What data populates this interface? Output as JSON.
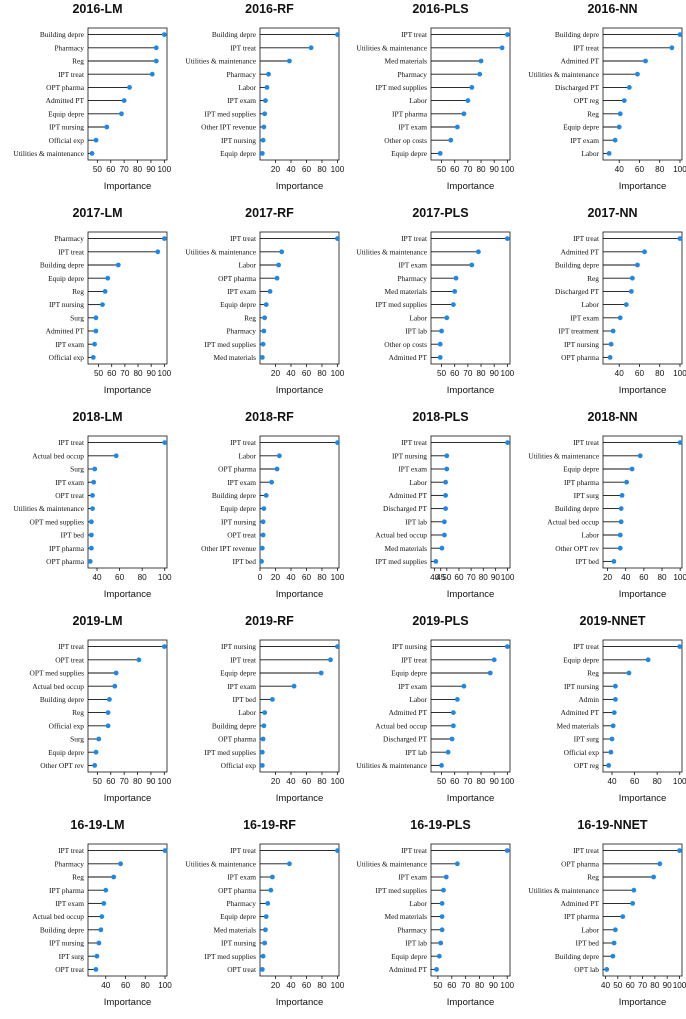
{
  "chart_data": [
    {
      "type": "lollipop",
      "title": "2016-LM",
      "xlabel": "Importance",
      "xlim": [
        43,
        102
      ],
      "ticks": [
        50,
        60,
        70,
        80,
        90,
        100
      ],
      "categories": [
        "Building depre",
        "Pharmacy",
        "Reg",
        "IPT treat",
        "OPT pharma",
        "Admitted PT",
        "Equip depre",
        "IPT nursing",
        "Official exp",
        "Utilities & maintenance"
      ],
      "values": [
        100,
        94,
        94,
        91,
        74,
        70,
        68,
        57,
        49,
        46
      ]
    },
    {
      "type": "lollipop",
      "title": "2016-RF",
      "xlabel": "Importance",
      "xlim": [
        0,
        102
      ],
      "ticks": [
        20,
        40,
        60,
        80,
        100
      ],
      "categories": [
        "Building depre",
        "IPT treat",
        "Utilities & maintenance",
        "Pharmacy",
        "Labor",
        "IPT exam",
        "IPT med supplies",
        "Other IPT revenue",
        "IPT nursing",
        "Equip depre"
      ],
      "values": [
        100,
        66,
        38,
        11,
        9,
        7,
        6,
        5,
        4,
        3
      ]
    },
    {
      "type": "lollipop",
      "title": "2016-PLS",
      "xlabel": "Importance",
      "xlim": [
        42,
        102
      ],
      "ticks": [
        50,
        60,
        70,
        80,
        90,
        100
      ],
      "categories": [
        "IPT treat",
        "Utilities & maintenance",
        "Med materials",
        "Pharmacy",
        "IPT med supplies",
        "Labor",
        "IPT pharma",
        "IPT exam",
        "Other op costs",
        "Equip depre"
      ],
      "values": [
        100,
        96,
        80,
        79,
        73,
        70,
        67,
        62,
        57,
        49
      ]
    },
    {
      "type": "lollipop",
      "title": "2016-NN",
      "xlabel": "Importance",
      "xlim": [
        24,
        102
      ],
      "ticks": [
        40,
        60,
        80,
        100
      ],
      "categories": [
        "Building depre",
        "IPT treat",
        "Admitted PT",
        "Utilities & maintenance",
        "Discharged PT",
        "OPT reg",
        "Reg",
        "Equip depre",
        "IPT exam",
        "Labor"
      ],
      "values": [
        100,
        92,
        66,
        58,
        50,
        45,
        41,
        40,
        36,
        30
      ]
    },
    {
      "type": "lollipop",
      "title": "2017-LM",
      "xlabel": "Importance",
      "xlim": [
        42,
        102
      ],
      "ticks": [
        50,
        60,
        70,
        80,
        90,
        100
      ],
      "categories": [
        "Pharmacy",
        "IPT treat",
        "Building depre",
        "Equip depre",
        "Reg",
        "IPT nursing",
        "Surg",
        "Admitted PT",
        "IPT exam",
        "Official exp"
      ],
      "values": [
        100,
        95,
        65,
        57,
        55,
        53,
        48,
        48,
        47,
        46
      ]
    },
    {
      "type": "lollipop",
      "title": "2017-RF",
      "xlabel": "Importance",
      "xlim": [
        0,
        102
      ],
      "ticks": [
        20,
        40,
        60,
        80,
        100
      ],
      "categories": [
        "IPT treat",
        "Utilities & maintenance",
        "Labor",
        "OPT pharma",
        "IPT exam",
        "Equip depre",
        "Reg",
        "Pharmacy",
        "IPT med supplies",
        "Med materials"
      ],
      "values": [
        100,
        28,
        24,
        22,
        13,
        8,
        6,
        5,
        4,
        3
      ]
    },
    {
      "type": "lollipop",
      "title": "2017-PLS",
      "xlabel": "Importance",
      "xlim": [
        42,
        102
      ],
      "ticks": [
        50,
        60,
        70,
        80,
        90,
        100
      ],
      "categories": [
        "IPT treat",
        "Utilities & maintenance",
        "IPT exam",
        "Pharmacy",
        "Med materials",
        "IPT med supplies",
        "Labor",
        "IPT lab",
        "Other op costs",
        "Admitted PT"
      ],
      "values": [
        100,
        78,
        73,
        61,
        60,
        59,
        54,
        50,
        49,
        49
      ]
    },
    {
      "type": "lollipop",
      "title": "2017-NN",
      "xlabel": "Importance",
      "xlim": [
        24,
        102
      ],
      "ticks": [
        40,
        60,
        80,
        100
      ],
      "categories": [
        "IPT treat",
        "Admitted PT",
        "Building depre",
        "Reg",
        "Discharged PT",
        "Labor",
        "IPT exam",
        "IPT treatment",
        "IPT nursing",
        "OPT pharma"
      ],
      "values": [
        100,
        65,
        58,
        53,
        52,
        47,
        41,
        34,
        32,
        31
      ]
    },
    {
      "type": "lollipop",
      "title": "2018-LM",
      "xlabel": "Importance",
      "xlim": [
        32,
        102
      ],
      "ticks": [
        40,
        60,
        80,
        100
      ],
      "categories": [
        "IPT treat",
        "Actual bed occup",
        "Surg",
        "IPT exam",
        "OPT treat",
        "Utilities & maintenance",
        "OPT med supplies",
        "IPT bed",
        "IPT pharma",
        "OPT pharma"
      ],
      "values": [
        100,
        57,
        38,
        37,
        36,
        36,
        35,
        35,
        35,
        34
      ]
    },
    {
      "type": "lollipop",
      "title": "2018-RF",
      "xlabel": "Importance",
      "xlim": [
        0,
        102
      ],
      "ticks": [
        0,
        20,
        40,
        60,
        80,
        100
      ],
      "categories": [
        "IPT treat",
        "Labor",
        "OPT pharma",
        "IPT exam",
        "Building depre",
        "Equip depre",
        "IPT nursing",
        "OPT treat",
        "Other IPT revenue",
        "IPT bed"
      ],
      "values": [
        100,
        25,
        22,
        15,
        8,
        5,
        4,
        4,
        3,
        2
      ]
    },
    {
      "type": "lollipop",
      "title": "2018-PLS",
      "xlabel": "Importance",
      "xlim": [
        37,
        102
      ],
      "ticks": [
        40,
        45,
        50,
        60,
        70,
        80,
        90,
        100
      ],
      "categories": [
        "IPT treat",
        "IPT nursing",
        "IPT exam",
        "Labor",
        "Admitted PT",
        "Discharged PT",
        "IPT lab",
        "Actual bed occup",
        "Med materials",
        "IPT med supplies"
      ],
      "values": [
        100,
        50,
        50,
        49,
        49,
        49,
        48,
        48,
        46,
        41
      ]
    },
    {
      "type": "lollipop",
      "title": "2018-NN",
      "xlabel": "Importance",
      "xlim": [
        15,
        102
      ],
      "ticks": [
        20,
        40,
        60,
        80,
        100
      ],
      "categories": [
        "IPT treat",
        "Utilities & maintenance",
        "Equip depre",
        "IPT pharma",
        "IPT surg",
        "Building depre",
        "Actual bed occup",
        "Labor",
        "Other OPT rev",
        "IPT bed"
      ],
      "values": [
        100,
        56,
        47,
        41,
        36,
        35,
        35,
        34,
        34,
        27
      ]
    },
    {
      "type": "lollipop",
      "title": "2019-LM",
      "xlabel": "Importance",
      "xlim": [
        43,
        102
      ],
      "ticks": [
        50,
        60,
        70,
        80,
        90,
        100
      ],
      "categories": [
        "IPT treat",
        "OPT treat",
        "OPT med supplies",
        "Actual bed occup",
        "Building depre",
        "Reg",
        "Official exp",
        "Surg",
        "Equip depre",
        "Other OPT rev"
      ],
      "values": [
        100,
        81,
        64,
        63,
        59,
        58,
        58,
        51,
        49,
        48
      ]
    },
    {
      "type": "lollipop",
      "title": "2019-RF",
      "xlabel": "Importance",
      "xlim": [
        0,
        102
      ],
      "ticks": [
        20,
        40,
        60,
        80,
        100
      ],
      "categories": [
        "IPT nursing",
        "IPT treat",
        "Equip depre",
        "IPT exam",
        "IPT bed",
        "Labor",
        "Building depre",
        "OPT pharma",
        "IPT med supplies",
        "Official exp"
      ],
      "values": [
        100,
        91,
        79,
        44,
        16,
        6,
        5,
        4,
        3,
        3
      ]
    },
    {
      "type": "lollipop",
      "title": "2019-PLS",
      "xlabel": "Importance",
      "xlim": [
        42,
        102
      ],
      "ticks": [
        50,
        60,
        70,
        80,
        90,
        100
      ],
      "categories": [
        "IPT nursing",
        "IPT treat",
        "Equip depre",
        "IPT exam",
        "Labor",
        "Admitted PT",
        "Actual bed occup",
        "Discharged PT",
        "IPT lab",
        "Utilities & maintenance"
      ],
      "values": [
        100,
        90,
        87,
        67,
        62,
        59,
        59,
        58,
        55,
        50
      ]
    },
    {
      "type": "lollipop",
      "title": "2019-NNET",
      "xlabel": "Importance",
      "xlim": [
        32,
        102
      ],
      "ticks": [
        40,
        60,
        80,
        100
      ],
      "categories": [
        "IPT treat",
        "Equip depre",
        "Reg",
        "IPT nursing",
        "Admin",
        "Admitted PT",
        "Med materials",
        "IPT surg",
        "Official exp",
        "OPT reg"
      ],
      "values": [
        100,
        72,
        55,
        43,
        43,
        42,
        41,
        40,
        39,
        37
      ]
    },
    {
      "type": "lollipop",
      "title": "16-19-LM",
      "xlabel": "Importance",
      "xlim": [
        22,
        102
      ],
      "ticks": [
        40,
        60,
        80,
        100
      ],
      "categories": [
        "IPT treat",
        "Pharmacy",
        "Reg",
        "IPT pharma",
        "IPT exam",
        "Actual bed occup",
        "Building depre",
        "IPT nursing",
        "IPT surg",
        "OPT treat"
      ],
      "values": [
        100,
        55,
        48,
        40,
        38,
        36,
        35,
        33,
        31,
        30
      ]
    },
    {
      "type": "lollipop",
      "title": "16-19-RF",
      "xlabel": "Importance",
      "xlim": [
        0,
        102
      ],
      "ticks": [
        20,
        40,
        60,
        80,
        100
      ],
      "categories": [
        "IPT treat",
        "Utilities & maintenance",
        "IPT exam",
        "OPT pharma",
        "Pharmacy",
        "Equip depre",
        "Med materials",
        "IPT nursing",
        "IPT med supplies",
        "OPT treat"
      ],
      "values": [
        100,
        38,
        16,
        14,
        10,
        8,
        7,
        6,
        4,
        3
      ]
    },
    {
      "type": "lollipop",
      "title": "16-19-PLS",
      "xlabel": "Importance",
      "xlim": [
        45,
        102
      ],
      "ticks": [
        50,
        60,
        70,
        80,
        90,
        100
      ],
      "categories": [
        "IPT treat",
        "Utilities & maintenance",
        "IPT exam",
        "IPT med supplies",
        "Labor",
        "Med materials",
        "Pharmacy",
        "IPT lab",
        "Equip depre",
        "Admitted PT"
      ],
      "values": [
        100,
        64,
        56,
        54,
        53,
        53,
        53,
        52,
        51,
        49
      ]
    },
    {
      "type": "lollipop",
      "title": "16-19-NNET",
      "xlabel": "Importance",
      "xlim": [
        38,
        102
      ],
      "ticks": [
        40,
        50,
        60,
        70,
        80,
        90,
        100
      ],
      "categories": [
        "IPT treat",
        "OPT pharma",
        "Reg",
        "Utilities & maintenance",
        "Admitted PT",
        "IPT pharma",
        "Labor",
        "IPT bed",
        "Building depre",
        "OPT lab"
      ],
      "values": [
        100,
        84,
        79,
        63,
        62,
        54,
        48,
        47,
        46,
        41
      ]
    }
  ],
  "colors": {
    "point": "#1e88e5",
    "line": "#111111",
    "axis": "#111111"
  }
}
